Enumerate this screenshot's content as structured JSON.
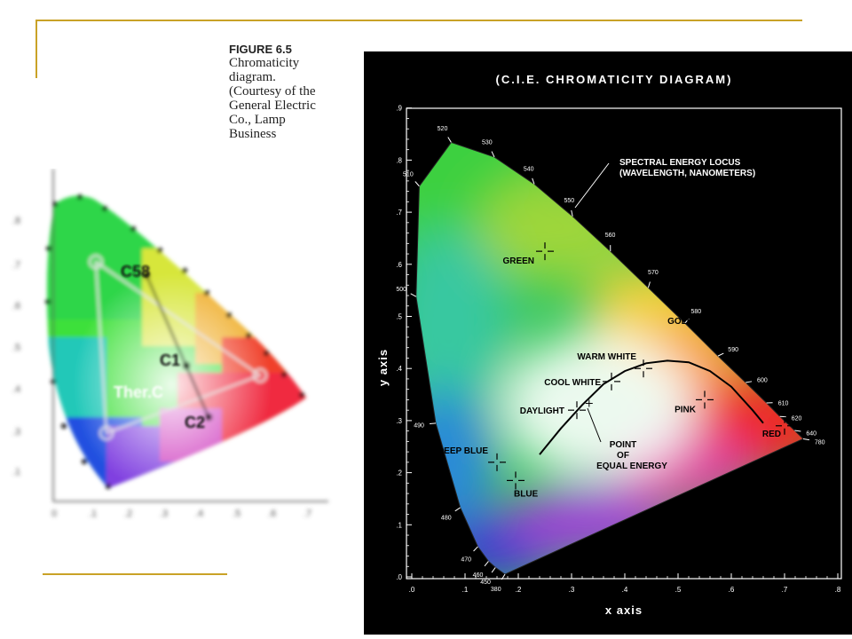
{
  "caption": {
    "title": "FIGURE 6.5",
    "lines": [
      "Chromaticity",
      "diagram.",
      "(Courtesy of the",
      "General Electric",
      "Co., Lamp",
      "Business"
    ]
  },
  "left_figure": {
    "point_labels": [
      "C58",
      "C1",
      "C2"
    ],
    "region_label": "Ther.C"
  },
  "right_figure": {
    "title": "(C.I.E. CHROMATICITY DIAGRAM)",
    "xlabel": "x axis",
    "ylabel": "y axis",
    "xticks": [
      ".0",
      ".1",
      ".2",
      ".3",
      ".4",
      ".5",
      ".6",
      ".7",
      ".8"
    ],
    "yticks": [
      ".0",
      ".1",
      ".2",
      ".3",
      ".4",
      ".5",
      ".6",
      ".7",
      ".8",
      ".9"
    ],
    "locus_note": [
      "SPECTRAL ENERGY LOCUS",
      "(WAVELENGTH, NANOMETERS)"
    ],
    "equal_energy_note": [
      "POINT",
      "OF",
      "EQUAL ENERGY"
    ],
    "wavelengths": [
      {
        "nm": "380",
        "x": 0.175,
        "y": 0.005
      },
      {
        "nm": "450",
        "x": 0.157,
        "y": 0.018
      },
      {
        "nm": "460",
        "x": 0.144,
        "y": 0.03
      },
      {
        "nm": "470",
        "x": 0.124,
        "y": 0.058
      },
      {
        "nm": "480",
        "x": 0.091,
        "y": 0.133
      },
      {
        "nm": "490",
        "x": 0.045,
        "y": 0.295
      },
      {
        "nm": "500",
        "x": 0.008,
        "y": 0.538
      },
      {
        "nm": "510",
        "x": 0.014,
        "y": 0.75
      },
      {
        "nm": "520",
        "x": 0.074,
        "y": 0.834
      },
      {
        "nm": "530",
        "x": 0.155,
        "y": 0.806
      },
      {
        "nm": "540",
        "x": 0.23,
        "y": 0.754
      },
      {
        "nm": "550",
        "x": 0.302,
        "y": 0.692
      },
      {
        "nm": "560",
        "x": 0.373,
        "y": 0.625
      },
      {
        "nm": "570",
        "x": 0.444,
        "y": 0.555
      },
      {
        "nm": "580",
        "x": 0.513,
        "y": 0.487
      },
      {
        "nm": "590",
        "x": 0.575,
        "y": 0.424
      },
      {
        "nm": "600",
        "x": 0.627,
        "y": 0.373
      },
      {
        "nm": "610",
        "x": 0.666,
        "y": 0.334
      },
      {
        "nm": "620",
        "x": 0.691,
        "y": 0.308
      },
      {
        "nm": "640",
        "x": 0.719,
        "y": 0.281
      },
      {
        "nm": "780",
        "x": 0.735,
        "y": 0.265
      }
    ],
    "color_points": [
      {
        "label": "GREEN",
        "x": 0.25,
        "y": 0.625
      },
      {
        "label": "GOLD",
        "x": 0.545,
        "y": 0.475
      },
      {
        "label": "WARM WHITE",
        "x": 0.435,
        "y": 0.4
      },
      {
        "label": "COOL WHITE",
        "x": 0.375,
        "y": 0.375
      },
      {
        "label": "DAYLIGHT",
        "x": 0.31,
        "y": 0.32
      },
      {
        "label": "PINK",
        "x": 0.55,
        "y": 0.34
      },
      {
        "label": "RED",
        "x": 0.7,
        "y": 0.29
      },
      {
        "label": "DEEP BLUE",
        "x": 0.16,
        "y": 0.22
      },
      {
        "label": "BLUE",
        "x": 0.195,
        "y": 0.185
      }
    ],
    "equal_energy_point": {
      "x": 0.333,
      "y": 0.333
    },
    "planckian_locus": [
      [
        0.24,
        0.235
      ],
      [
        0.28,
        0.285
      ],
      [
        0.32,
        0.33
      ],
      [
        0.36,
        0.37
      ],
      [
        0.4,
        0.395
      ],
      [
        0.44,
        0.41
      ],
      [
        0.48,
        0.415
      ],
      [
        0.52,
        0.412
      ],
      [
        0.56,
        0.395
      ],
      [
        0.6,
        0.365
      ],
      [
        0.64,
        0.32
      ],
      [
        0.66,
        0.295
      ]
    ]
  }
}
